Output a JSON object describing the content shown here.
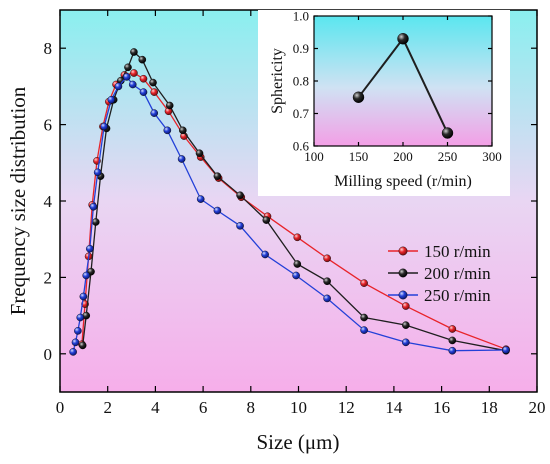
{
  "chart_data": [
    {
      "type": "line",
      "xlabel": "Size (μm)",
      "ylabel": "Frequency size distribution",
      "xlim": [
        0,
        20
      ],
      "ylim": [
        -1,
        9
      ],
      "x_ticks": [
        "0",
        "2",
        "4",
        "6",
        "8",
        "10",
        "12",
        "14",
        "16",
        "18",
        "20"
      ],
      "y_ticks": [
        "0",
        "2",
        "4",
        "6",
        "8"
      ],
      "legend_position": "right",
      "background": "vertical gradient, cyan top to pink bottom",
      "series": [
        {
          "name": "150 r/min",
          "color": "#e8242a",
          "x": [
            0.92,
            1.05,
            1.2,
            1.35,
            1.55,
            1.8,
            2.05,
            2.35,
            2.7,
            3.1,
            3.5,
            3.95,
            4.55,
            5.2,
            5.9,
            6.65,
            7.6,
            8.7,
            9.95,
            11.2,
            12.75,
            14.5,
            16.45,
            18.7
          ],
          "y": [
            0.25,
            1.3,
            2.55,
            3.9,
            5.05,
            5.95,
            6.6,
            7.05,
            7.3,
            7.35,
            7.2,
            6.85,
            6.35,
            5.7,
            5.15,
            4.6,
            4.1,
            3.6,
            3.05,
            2.5,
            1.85,
            1.25,
            0.65,
            0.12
          ]
        },
        {
          "name": "200 r/min",
          "color": "#1f1f1f",
          "x": [
            0.95,
            1.1,
            1.3,
            1.5,
            1.7,
            1.95,
            2.25,
            2.55,
            2.85,
            3.1,
            3.45,
            3.9,
            4.6,
            5.15,
            5.85,
            6.6,
            7.55,
            8.65,
            9.95,
            11.2,
            12.75,
            14.5,
            16.45,
            18.7
          ],
          "y": [
            0.22,
            1.0,
            2.15,
            3.45,
            4.65,
            5.9,
            6.65,
            7.15,
            7.5,
            7.9,
            7.7,
            7.1,
            6.5,
            5.85,
            5.25,
            4.65,
            4.15,
            3.5,
            2.35,
            1.9,
            0.95,
            0.75,
            0.35,
            0.08
          ]
        },
        {
          "name": "250 r/min",
          "color": "#2340d8",
          "x": [
            0.55,
            0.65,
            0.75,
            0.85,
            0.98,
            1.1,
            1.25,
            1.4,
            1.58,
            1.85,
            2.15,
            2.45,
            2.8,
            3.05,
            3.5,
            3.95,
            4.5,
            5.1,
            5.9,
            6.6,
            7.55,
            8.6,
            9.9,
            11.2,
            12.75,
            14.5,
            16.45,
            18.7
          ],
          "y": [
            0.05,
            0.3,
            0.6,
            0.95,
            1.5,
            2.05,
            2.75,
            3.85,
            4.75,
            5.95,
            6.65,
            7.0,
            7.25,
            7.05,
            6.85,
            6.3,
            5.85,
            5.1,
            4.05,
            3.75,
            3.35,
            2.6,
            2.05,
            1.45,
            0.62,
            0.3,
            0.08,
            0.1
          ]
        }
      ]
    },
    {
      "type": "line",
      "xlabel": "Milling speed (r/min)",
      "ylabel": "Sphericity",
      "xlim": [
        100,
        300
      ],
      "ylim": [
        0.6,
        1.0
      ],
      "x_ticks": [
        "100",
        "150",
        "200",
        "250",
        "300"
      ],
      "y_ticks": [
        "0.6",
        "0.7",
        "0.8",
        "0.9",
        "1.0"
      ],
      "background": "vertical gradient, cyan top to pink bottom",
      "series": [
        {
          "color": "#1f1f1f",
          "x": [
            150,
            200,
            250
          ],
          "y": [
            0.75,
            0.93,
            0.64
          ]
        }
      ]
    }
  ]
}
